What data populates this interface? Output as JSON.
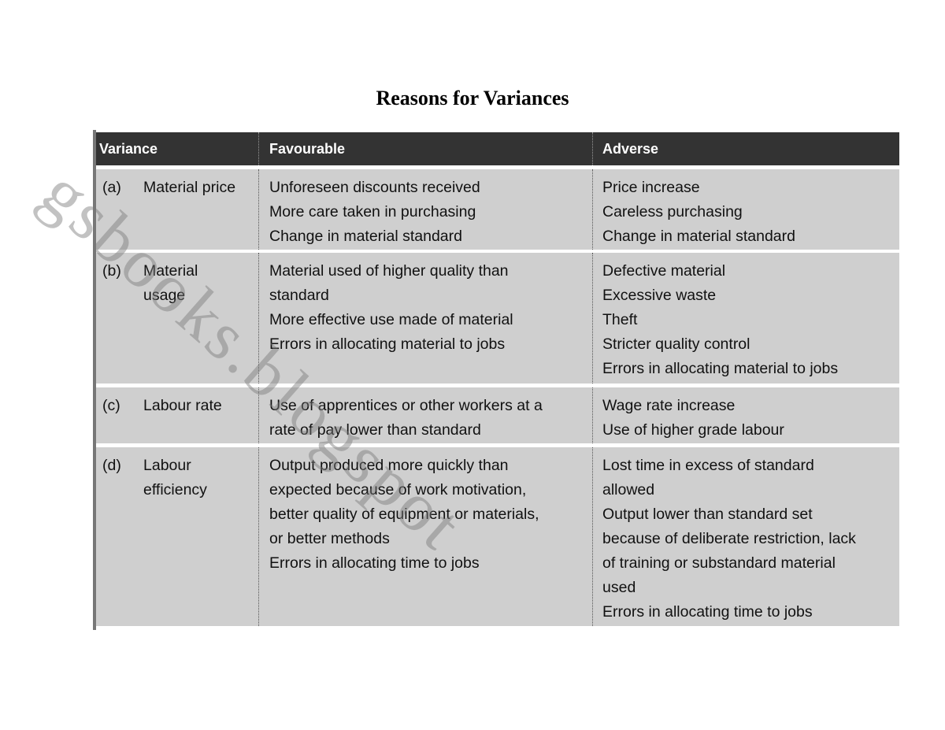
{
  "title": "Reasons for Variances",
  "watermark": "gsbooks.blogspot",
  "headers": [
    "Variance",
    "Favourable",
    "Adverse"
  ],
  "rows": [
    {
      "label": "(a)",
      "variance": [
        "Material price"
      ],
      "favourable": [
        "Unforeseen discounts received",
        "More care taken in purchasing",
        "Change in material standard"
      ],
      "adverse": [
        "Price increase",
        "Careless purchasing",
        "Change in material standard"
      ]
    },
    {
      "label": "(b)",
      "variance": [
        "Material",
        "usage"
      ],
      "favourable": [
        "Material used of higher quality than",
        "standard",
        "More effective use made of material",
        "Errors in allocating material to jobs"
      ],
      "adverse": [
        "Defective material",
        "Excessive waste",
        "Theft",
        "Stricter quality control",
        "Errors in allocating material to jobs"
      ]
    },
    {
      "label": "(c)",
      "variance": [
        "Labour rate"
      ],
      "favourable": [
        "Use of apprentices or other workers at a",
        "rate of pay lower than standard"
      ],
      "adverse": [
        "Wage rate increase",
        "Use of higher grade labour"
      ]
    },
    {
      "label": "(d)",
      "variance": [
        "Labour",
        "efficiency"
      ],
      "favourable": [
        "Output produced more quickly than",
        "expected because of work motivation,",
        "better quality of equipment or materials,",
        "or better methods",
        "Errors in allocating time to jobs"
      ],
      "adverse": [
        "Lost time in excess of standard",
        "allowed",
        "Output lower than standard set",
        "because of deliberate restriction, lack",
        "of training or substandard material",
        "used",
        "Errors in allocating time to jobs"
      ]
    }
  ]
}
